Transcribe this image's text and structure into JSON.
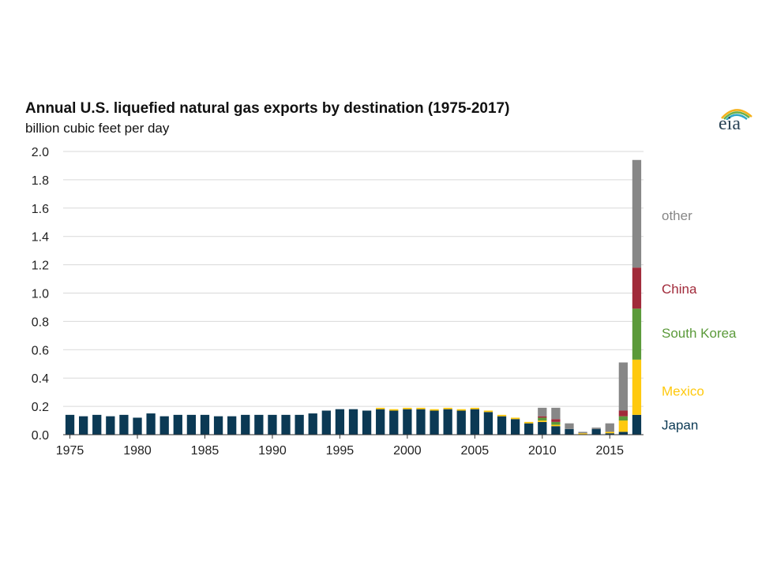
{
  "header": {
    "title": "Annual U.S. liquefied natural gas exports by destination (1975-2017)",
    "subtitle": "billion cubic feet per day"
  },
  "logo": {
    "text": "eia",
    "icon": "eia-sunrise-logo",
    "colors": [
      "#f6b21b",
      "#6ab04c",
      "#2fa6c7"
    ]
  },
  "chart_data": {
    "type": "bar",
    "stacked": true,
    "title": "Annual U.S. liquefied natural gas exports by destination (1975-2017)",
    "ylabel": "billion cubic feet per day",
    "xlabel": "",
    "ylim": [
      0,
      2.0
    ],
    "grid": true,
    "legend_placement": "right",
    "categories": [
      1975,
      1976,
      1977,
      1978,
      1979,
      1980,
      1981,
      1982,
      1983,
      1984,
      1985,
      1986,
      1987,
      1988,
      1989,
      1990,
      1991,
      1992,
      1993,
      1994,
      1995,
      1996,
      1997,
      1998,
      1999,
      2000,
      2001,
      2002,
      2003,
      2004,
      2005,
      2006,
      2007,
      2008,
      2009,
      2010,
      2011,
      2012,
      2013,
      2014,
      2015,
      2016,
      2017
    ],
    "y_ticks": [
      "0.0",
      "0.2",
      "0.4",
      "0.6",
      "0.8",
      "1.0",
      "1.2",
      "1.4",
      "1.6",
      "1.8",
      "2.0"
    ],
    "x_ticks": [
      "1975",
      "1980",
      "1985",
      "1990",
      "1995",
      "2000",
      "2005",
      "2010",
      "2015"
    ],
    "series": [
      {
        "name": "Japan",
        "color": "#0b3954",
        "values": [
          0.14,
          0.13,
          0.14,
          0.13,
          0.14,
          0.12,
          0.15,
          0.13,
          0.14,
          0.14,
          0.14,
          0.13,
          0.13,
          0.14,
          0.14,
          0.14,
          0.14,
          0.14,
          0.15,
          0.17,
          0.18,
          0.18,
          0.17,
          0.18,
          0.17,
          0.18,
          0.18,
          0.17,
          0.18,
          0.17,
          0.18,
          0.16,
          0.13,
          0.11,
          0.08,
          0.09,
          0.06,
          0.04,
          0.0,
          0.04,
          0.01,
          0.02,
          0.14
        ]
      },
      {
        "name": "Mexico",
        "color": "#ffc90e",
        "values": [
          0,
          0,
          0,
          0,
          0,
          0,
          0,
          0,
          0,
          0,
          0,
          0,
          0,
          0,
          0,
          0,
          0,
          0,
          0,
          0,
          0,
          0,
          0,
          0.01,
          0.01,
          0.01,
          0.01,
          0.01,
          0.01,
          0.01,
          0.01,
          0.01,
          0.01,
          0.01,
          0.01,
          0.01,
          0.01,
          0.0,
          0.01,
          0.0,
          0.01,
          0.08,
          0.39
        ]
      },
      {
        "name": "South Korea",
        "color": "#5b9a3a",
        "values": [
          0,
          0,
          0,
          0,
          0,
          0,
          0,
          0,
          0,
          0,
          0,
          0,
          0,
          0,
          0,
          0,
          0,
          0,
          0,
          0,
          0,
          0,
          0,
          0,
          0,
          0,
          0,
          0,
          0,
          0,
          0,
          0,
          0,
          0,
          0,
          0.02,
          0.02,
          0,
          0,
          0,
          0,
          0.03,
          0.36
        ]
      },
      {
        "name": "China",
        "color": "#a12a3a",
        "values": [
          0,
          0,
          0,
          0,
          0,
          0,
          0,
          0,
          0,
          0,
          0,
          0,
          0,
          0,
          0,
          0,
          0,
          0,
          0,
          0,
          0,
          0,
          0,
          0,
          0,
          0,
          0,
          0,
          0,
          0,
          0,
          0,
          0,
          0,
          0,
          0.01,
          0.02,
          0,
          0,
          0,
          0,
          0.04,
          0.29
        ]
      },
      {
        "name": "other",
        "color": "#878787",
        "values": [
          0,
          0,
          0,
          0,
          0,
          0,
          0,
          0,
          0,
          0,
          0,
          0,
          0,
          0,
          0,
          0,
          0,
          0,
          0,
          0,
          0,
          0,
          0,
          0,
          0,
          0,
          0,
          0,
          0,
          0,
          0,
          0,
          0,
          0,
          0,
          0.06,
          0.08,
          0.04,
          0.01,
          0.01,
          0.06,
          0.34,
          0.76
        ]
      }
    ],
    "legend_labels": [
      {
        "name": "other",
        "color": "#878787",
        "y": 1.55
      },
      {
        "name": "China",
        "color": "#a12a3a",
        "y": 1.03
      },
      {
        "name": "South Korea",
        "color": "#5b9a3a",
        "y": 0.72
      },
      {
        "name": "Mexico",
        "color": "#ffc90e",
        "y": 0.31
      },
      {
        "name": "Japan",
        "color": "#0b3954",
        "y": 0.07
      }
    ]
  }
}
